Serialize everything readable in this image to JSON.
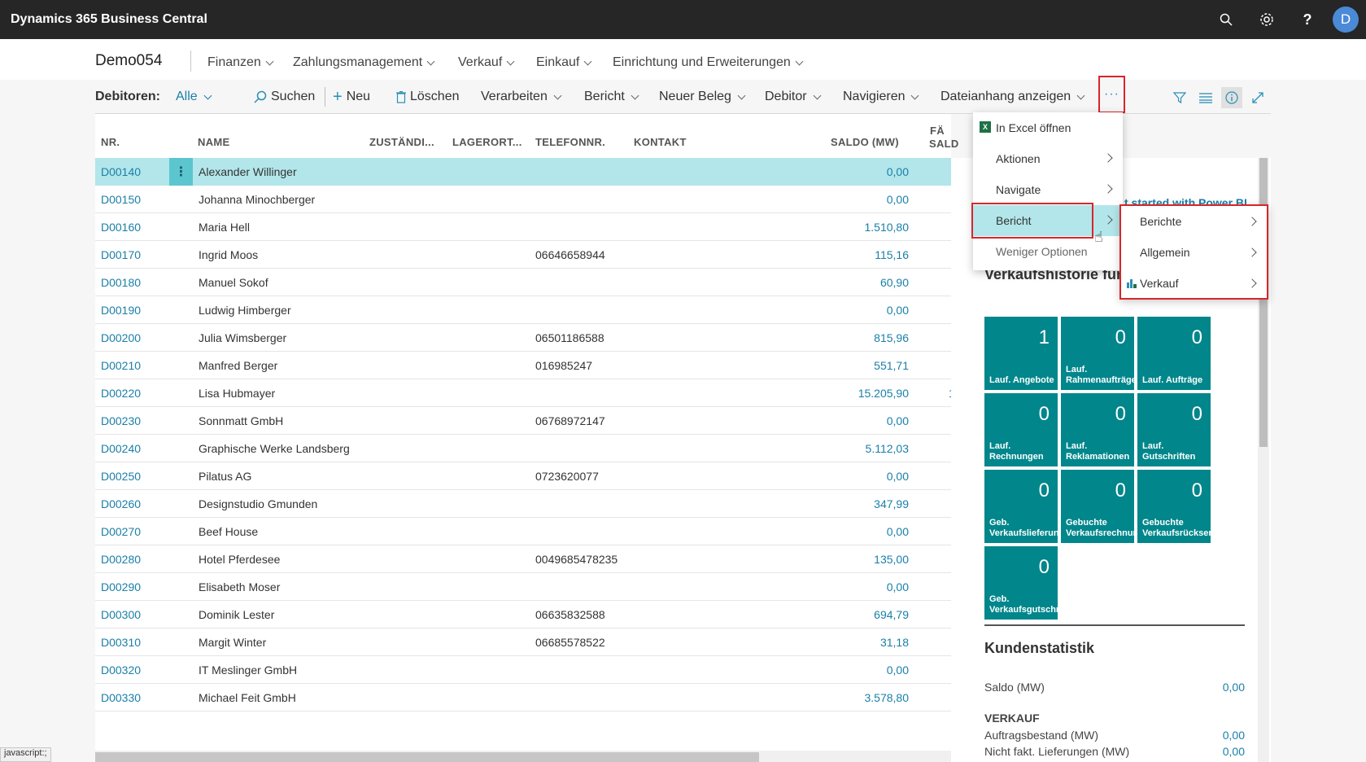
{
  "app": {
    "title": "Dynamics 365 Business Central",
    "avatar_initial": "D"
  },
  "company": {
    "name": "Demo054",
    "menu": [
      "Finanzen",
      "Zahlungsmanagement",
      "Verkauf",
      "Einkauf",
      "Einrichtung und Erweiterungen"
    ]
  },
  "actionbar": {
    "list_label": "Debitoren:",
    "filter": "Alle",
    "search": "Suchen",
    "new": "Neu",
    "delete": "Löschen",
    "process": "Verarbeiten",
    "report": "Bericht",
    "new_doc": "Neuer Beleg",
    "customer": "Debitor",
    "navigate": "Navigieren",
    "attachment": "Dateianhang anzeigen",
    "more": "···"
  },
  "table": {
    "headers": {
      "nr": "NR.",
      "name": "NAME",
      "zust": "ZUSTÄNDI...",
      "lager": "LAGERORT...",
      "tel": "TELEFONNR.",
      "kontakt": "KONTAKT",
      "saldo": "SALDO (MW)",
      "faellig1": "FÄ",
      "faellig2": "SALD"
    },
    "rows": [
      {
        "nr": "D00140",
        "name": "Alexander Willinger",
        "tel": "",
        "saldo": "0,00"
      },
      {
        "nr": "D00150",
        "name": "Johanna Minochberger",
        "tel": "",
        "saldo": "0,00"
      },
      {
        "nr": "D00160",
        "name": "Maria Hell",
        "tel": "",
        "saldo": "1.510,80"
      },
      {
        "nr": "D00170",
        "name": "Ingrid Moos",
        "tel": "06646658944",
        "saldo": "115,16"
      },
      {
        "nr": "D00180",
        "name": "Manuel Sokof",
        "tel": "",
        "saldo": "60,90"
      },
      {
        "nr": "D00190",
        "name": "Ludwig Himberger",
        "tel": "",
        "saldo": "0,00"
      },
      {
        "nr": "D00200",
        "name": "Julia Wimsberger",
        "tel": "06501186588",
        "saldo": "815,96"
      },
      {
        "nr": "D00210",
        "name": "Manfred Berger",
        "tel": "016985247",
        "saldo": "551,71"
      },
      {
        "nr": "D00220",
        "name": "Lisa Hubmayer",
        "tel": "",
        "saldo": "15.205,90"
      },
      {
        "nr": "D00230",
        "name": "Sonnmatt GmbH",
        "tel": "06768972147",
        "saldo": "0,00"
      },
      {
        "nr": "D00240",
        "name": "Graphische Werke Landsberg",
        "tel": "",
        "saldo": "5.112,03"
      },
      {
        "nr": "D00250",
        "name": "Pilatus AG",
        "tel": "0723620077",
        "saldo": "0,00"
      },
      {
        "nr": "D00260",
        "name": "Designstudio Gmunden",
        "tel": "",
        "saldo": "347,99"
      },
      {
        "nr": "D00270",
        "name": "Beef House",
        "tel": "",
        "saldo": "0,00"
      },
      {
        "nr": "D00280",
        "name": "Hotel Pferdesee",
        "tel": "0049685478235",
        "saldo": "135,00"
      },
      {
        "nr": "D00290",
        "name": "Elisabeth Moser",
        "tel": "",
        "saldo": "0,00"
      },
      {
        "nr": "D00300",
        "name": "Dominik Lester",
        "tel": "06635832588",
        "saldo": "694,79"
      },
      {
        "nr": "D00310",
        "name": "Margit Winter",
        "tel": "06685578522",
        "saldo": "31,18"
      },
      {
        "nr": "D00320",
        "name": "IT Meslinger GmbH",
        "tel": "",
        "saldo": "0,00"
      },
      {
        "nr": "D00330",
        "name": "Michael Feit GmbH",
        "tel": "",
        "saldo": "3.578,80"
      }
    ],
    "row_dots": "⋮",
    "partial_value": "1"
  },
  "menu_more": {
    "excel": "In Excel öffnen",
    "actions": "Aktionen",
    "navigate": "Navigate",
    "report": "Bericht",
    "fewer": "Weniger Optionen"
  },
  "menu_report": {
    "reports": "Berichte",
    "general": "Allgemein",
    "sales": "Verkauf"
  },
  "factbox": {
    "powerbi_link": "t started with Power BI",
    "history_title": "Verkaufshistorie für V",
    "tiles": [
      {
        "value": "1",
        "label": "Lauf. Angebote"
      },
      {
        "value": "0",
        "label": "Lauf. Rahmenaufträge"
      },
      {
        "value": "0",
        "label": "Lauf. Aufträge"
      },
      {
        "value": "0",
        "label": "Lauf. Rechnungen"
      },
      {
        "value": "0",
        "label": "Lauf. Reklamationen"
      },
      {
        "value": "0",
        "label": "Lauf. Gutschriften"
      },
      {
        "value": "0",
        "label": "Geb. Verkaufslieferungen"
      },
      {
        "value": "0",
        "label": "Gebuchte Verkaufsrechnungen"
      },
      {
        "value": "0",
        "label": "Gebuchte Verkaufsrücksendungen"
      },
      {
        "value": "0",
        "label": "Geb. Verkaufsgutschriften"
      }
    ],
    "stats_title": "Kundenstatistik",
    "saldo_label": "Saldo (MW)",
    "saldo_value": "0,00",
    "sales_heading": "VERKAUF",
    "order_label": "Auftragsbestand (MW)",
    "order_value": "0,00",
    "ship_label": "Nicht fakt. Lieferungen (MW)",
    "ship_value": "0,00"
  },
  "status_bar": "javascript:;",
  "colors": {
    "accent": "#00868b",
    "link": "#1a7fa8",
    "selected_row": "#b2e6ea",
    "highlight_border": "#d9252a"
  }
}
